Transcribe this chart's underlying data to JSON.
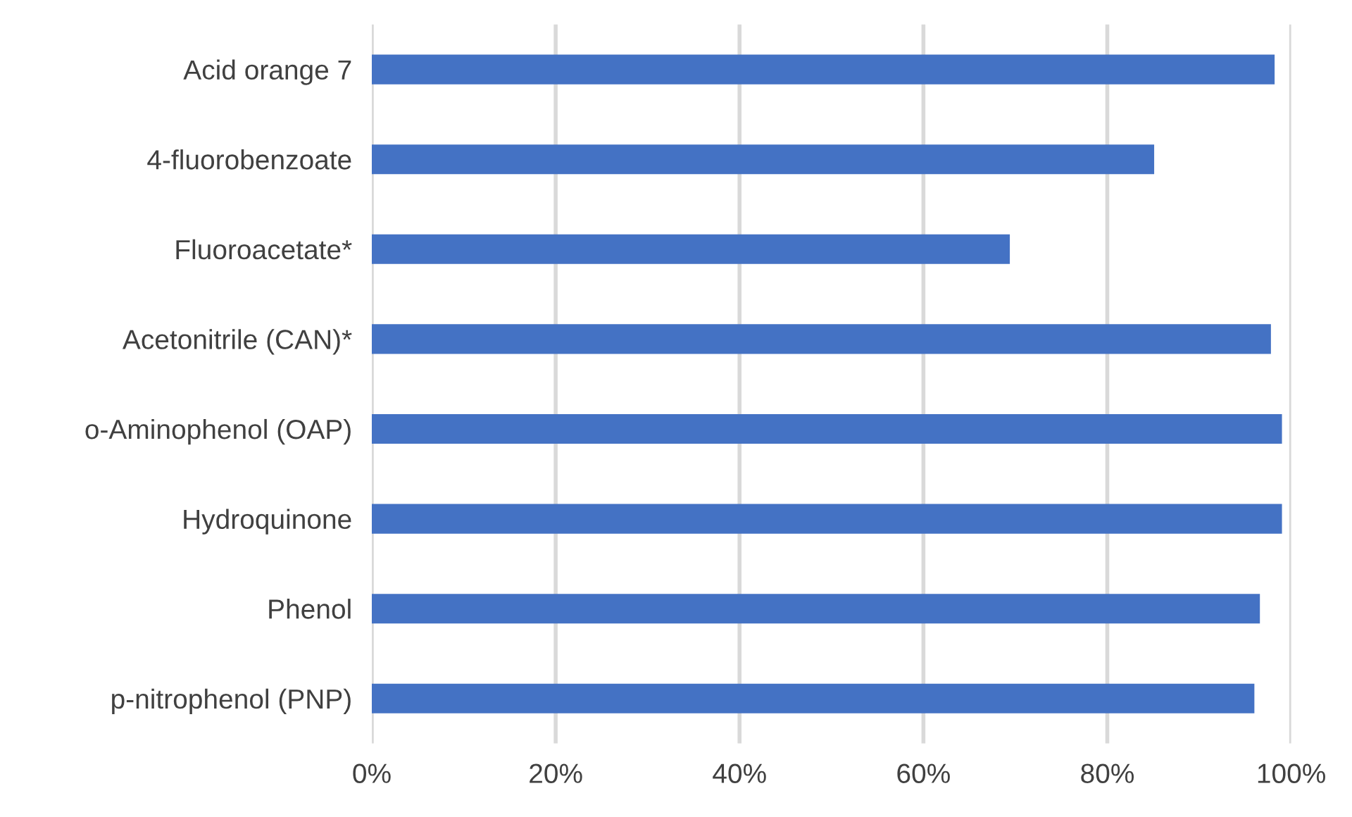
{
  "chart_data": {
    "type": "bar",
    "orientation": "horizontal",
    "categories": [
      "Acid orange 7",
      "4-fluorobenzoate",
      "Fluoroacetate*",
      "Acetonitrile (CAN)*",
      "o-Aminophenol (OAP)",
      "Hydroquinone",
      "Phenol",
      "p-nitrophenol (PNP)"
    ],
    "values": [
      98.2,
      85.1,
      69.4,
      97.8,
      99.0,
      99.0,
      96.6,
      96.0
    ],
    "color": "#4472c4",
    "xlim": [
      0,
      100
    ],
    "xticks": [
      {
        "value": 0,
        "label": "0%"
      },
      {
        "value": 20,
        "label": "20%"
      },
      {
        "value": 40,
        "label": "40%"
      },
      {
        "value": 60,
        "label": "60%"
      },
      {
        "value": 80,
        "label": "80%"
      },
      {
        "value": 100,
        "label": "100%"
      }
    ],
    "grid": "x"
  }
}
